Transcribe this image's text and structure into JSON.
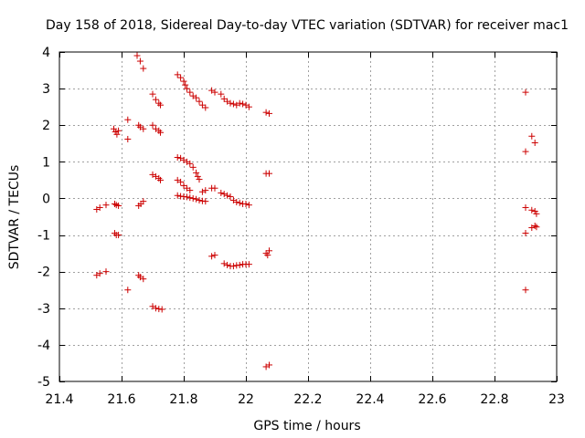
{
  "chart_data": {
    "type": "scatter",
    "title": "Day 158 of 2018, Sidereal Day-to-day VTEC variation (SDTVAR) for receiver mac1",
    "xlabel": "GPS time / hours",
    "ylabel": "SDTVAR / TECUs",
    "xlim": [
      21.4,
      23.0
    ],
    "ylim": [
      -5,
      4
    ],
    "xticks": [
      21.4,
      21.6,
      21.8,
      22.0,
      22.2,
      22.4,
      22.6,
      22.8,
      23.0
    ],
    "xtick_labels": [
      "21.4",
      "21.6",
      "21.8",
      "22",
      "22.2",
      "22.4",
      "22.6",
      "22.8",
      "23"
    ],
    "yticks": [
      -5,
      -4,
      -3,
      -2,
      -1,
      0,
      1,
      2,
      3,
      4
    ],
    "ytick_labels": [
      "-5",
      "-4",
      "-3",
      "-2",
      "-1",
      "0",
      "1",
      "2",
      "3",
      "4"
    ],
    "grid": true,
    "marker": "+",
    "marker_color": "#cc0000",
    "series": [
      {
        "name": "SDTVAR",
        "points": [
          [
            21.52,
            -0.3
          ],
          [
            21.53,
            -0.25
          ],
          [
            21.55,
            -0.18
          ],
          [
            21.52,
            -2.1
          ],
          [
            21.53,
            -2.05
          ],
          [
            21.55,
            -2.0
          ],
          [
            21.575,
            1.9
          ],
          [
            21.58,
            1.82
          ],
          [
            21.585,
            1.75
          ],
          [
            21.59,
            1.85
          ],
          [
            21.578,
            -0.15
          ],
          [
            21.583,
            -0.18
          ],
          [
            21.59,
            -0.2
          ],
          [
            21.578,
            -0.95
          ],
          [
            21.583,
            -1.0
          ],
          [
            21.59,
            -1.0
          ],
          [
            21.62,
            2.15
          ],
          [
            21.62,
            1.62
          ],
          [
            21.62,
            -2.5
          ],
          [
            21.65,
            3.9
          ],
          [
            21.66,
            3.75
          ],
          [
            21.67,
            3.55
          ],
          [
            21.655,
            2.0
          ],
          [
            21.66,
            1.95
          ],
          [
            21.67,
            1.9
          ],
          [
            21.655,
            -0.2
          ],
          [
            21.662,
            -0.15
          ],
          [
            21.67,
            -0.08
          ],
          [
            21.655,
            -2.1
          ],
          [
            21.66,
            -2.15
          ],
          [
            21.67,
            -2.2
          ],
          [
            21.7,
            2.85
          ],
          [
            21.71,
            2.7
          ],
          [
            21.72,
            2.6
          ],
          [
            21.725,
            2.55
          ],
          [
            21.7,
            2.0
          ],
          [
            21.71,
            1.9
          ],
          [
            21.72,
            1.85
          ],
          [
            21.725,
            1.8
          ],
          [
            21.7,
            0.65
          ],
          [
            21.71,
            0.6
          ],
          [
            21.72,
            0.55
          ],
          [
            21.725,
            0.5
          ],
          [
            21.7,
            -2.95
          ],
          [
            21.71,
            -3.0
          ],
          [
            21.72,
            -3.02
          ],
          [
            21.73,
            -3.03
          ],
          [
            21.78,
            3.38
          ],
          [
            21.79,
            3.3
          ],
          [
            21.8,
            3.2
          ],
          [
            21.805,
            3.1
          ],
          [
            21.81,
            3.0
          ],
          [
            21.82,
            2.9
          ],
          [
            21.83,
            2.8
          ],
          [
            21.84,
            2.75
          ],
          [
            21.85,
            2.65
          ],
          [
            21.86,
            2.55
          ],
          [
            21.87,
            2.48
          ],
          [
            21.78,
            1.12
          ],
          [
            21.79,
            1.1
          ],
          [
            21.8,
            1.05
          ],
          [
            21.81,
            1.0
          ],
          [
            21.82,
            0.95
          ],
          [
            21.83,
            0.85
          ],
          [
            21.84,
            0.7
          ],
          [
            21.845,
            0.6
          ],
          [
            21.85,
            0.52
          ],
          [
            21.78,
            0.5
          ],
          [
            21.79,
            0.45
          ],
          [
            21.8,
            0.35
          ],
          [
            21.81,
            0.28
          ],
          [
            21.82,
            0.22
          ],
          [
            21.78,
            0.08
          ],
          [
            21.79,
            0.06
          ],
          [
            21.8,
            0.05
          ],
          [
            21.81,
            0.04
          ],
          [
            21.82,
            0.02
          ],
          [
            21.83,
            0.0
          ],
          [
            21.84,
            -0.02
          ],
          [
            21.85,
            -0.05
          ],
          [
            21.86,
            -0.07
          ],
          [
            21.87,
            -0.08
          ],
          [
            21.86,
            0.18
          ],
          [
            21.87,
            0.22
          ],
          [
            21.89,
            2.95
          ],
          [
            21.9,
            2.9
          ],
          [
            21.89,
            0.28
          ],
          [
            21.9,
            0.28
          ],
          [
            21.89,
            -1.58
          ],
          [
            21.9,
            -1.55
          ],
          [
            21.92,
            2.85
          ],
          [
            21.93,
            2.72
          ],
          [
            21.94,
            2.65
          ],
          [
            21.95,
            2.6
          ],
          [
            21.96,
            2.58
          ],
          [
            21.97,
            2.55
          ],
          [
            21.98,
            2.6
          ],
          [
            21.99,
            2.58
          ],
          [
            22.0,
            2.55
          ],
          [
            22.01,
            2.5
          ],
          [
            21.92,
            0.15
          ],
          [
            21.93,
            0.12
          ],
          [
            21.94,
            0.08
          ],
          [
            21.95,
            0.05
          ],
          [
            21.96,
            -0.05
          ],
          [
            21.97,
            -0.1
          ],
          [
            21.98,
            -0.12
          ],
          [
            21.99,
            -0.15
          ],
          [
            22.0,
            -0.15
          ],
          [
            22.01,
            -0.18
          ],
          [
            21.93,
            -1.78
          ],
          [
            21.94,
            -1.82
          ],
          [
            21.95,
            -1.85
          ],
          [
            21.96,
            -1.85
          ],
          [
            21.97,
            -1.83
          ],
          [
            21.98,
            -1.82
          ],
          [
            21.99,
            -1.8
          ],
          [
            22.0,
            -1.8
          ],
          [
            22.01,
            -1.8
          ],
          [
            22.065,
            2.35
          ],
          [
            22.075,
            2.32
          ],
          [
            22.065,
            0.68
          ],
          [
            22.075,
            0.68
          ],
          [
            22.065,
            -1.5
          ],
          [
            22.07,
            -1.55
          ],
          [
            22.075,
            -1.43
          ],
          [
            22.065,
            -4.6
          ],
          [
            22.075,
            -4.55
          ],
          [
            22.9,
            2.9
          ],
          [
            22.9,
            1.28
          ],
          [
            22.9,
            -0.25
          ],
          [
            22.9,
            -0.95
          ],
          [
            22.9,
            -2.5
          ],
          [
            22.92,
            1.7
          ],
          [
            22.93,
            1.52
          ],
          [
            22.92,
            -0.32
          ],
          [
            22.93,
            -0.35
          ],
          [
            22.935,
            -0.42
          ],
          [
            22.92,
            -0.8
          ],
          [
            22.93,
            -0.75
          ],
          [
            22.935,
            -0.78
          ]
        ]
      }
    ]
  }
}
